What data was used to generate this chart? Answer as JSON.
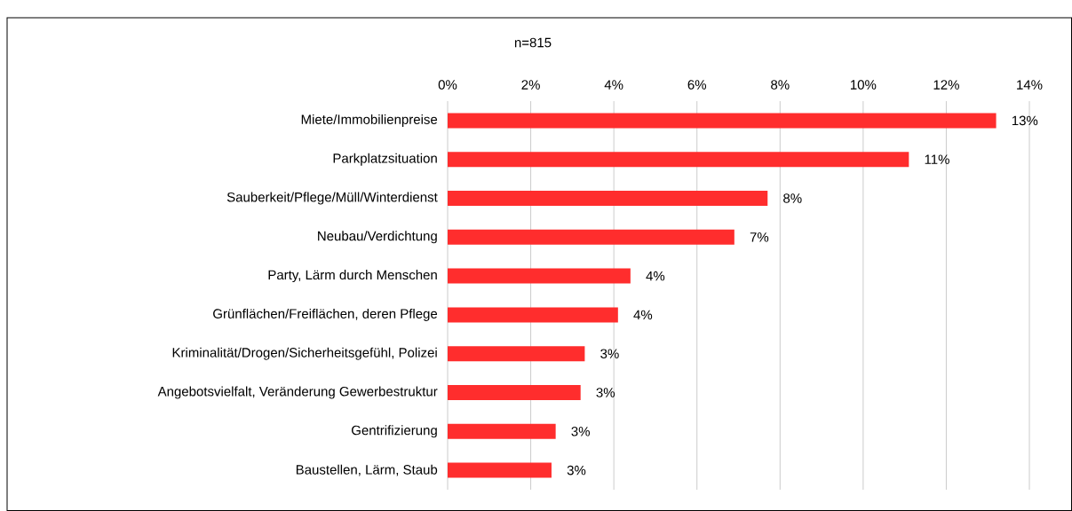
{
  "chart_data": {
    "type": "bar",
    "orientation": "horizontal",
    "subtitle": "n=815",
    "categories": [
      "Miete/Immobilienpreise",
      "Parkplatzsituation",
      "Sauberkeit/Pflege/Müll/Winterdienst",
      "Neubau/Verdichtung",
      "Party, Lärm durch Menschen",
      "Grünflächen/Freiflächen, deren Pflege",
      "Kriminalität/Drogen/Sicherheitsgefühl, Polizei",
      "Angebotsvielfalt, Veränderung Gewerbestruktur",
      "Gentrifizierung",
      "Baustellen, Lärm, Staub"
    ],
    "values": [
      13.2,
      11.1,
      7.7,
      6.9,
      4.4,
      4.1,
      3.3,
      3.2,
      2.6,
      2.5
    ],
    "value_labels": [
      "13%",
      "11%",
      "8%",
      "7%",
      "4%",
      "4%",
      "3%",
      "3%",
      "3%",
      "3%"
    ],
    "color": "#ff2d2d",
    "xlim": [
      0,
      14
    ],
    "xticks": [
      {
        "value": 0,
        "label": "0%"
      },
      {
        "value": 2,
        "label": "2%"
      },
      {
        "value": 4,
        "label": "4%"
      },
      {
        "value": 6,
        "label": "6%"
      },
      {
        "value": 8,
        "label": "8%"
      },
      {
        "value": 10,
        "label": "10%"
      },
      {
        "value": 12,
        "label": "12%"
      },
      {
        "value": 14,
        "label": "14%"
      }
    ],
    "grid": "x"
  }
}
